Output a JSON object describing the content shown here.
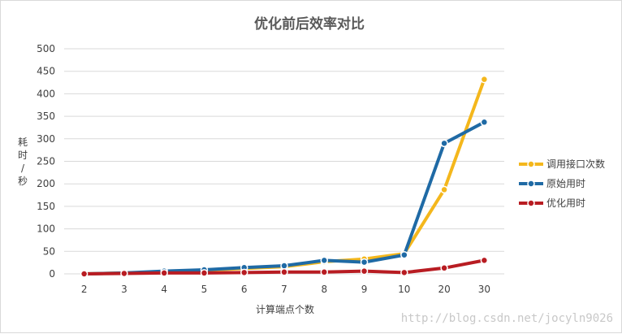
{
  "chart_data": {
    "type": "line",
    "title": "优化前后效率对比",
    "xlabel": "计算端点个数",
    "ylabel": "耗时/秒",
    "categories": [
      "2",
      "3",
      "4",
      "5",
      "6",
      "7",
      "8",
      "9",
      "10",
      "20",
      "30"
    ],
    "y_ticks": [
      "0",
      "50",
      "100",
      "150",
      "200",
      "250",
      "300",
      "350",
      "400",
      "450",
      "500"
    ],
    "ylim": [
      0,
      500
    ],
    "grid": true,
    "legend_position": "right",
    "series": [
      {
        "name": "调用接口次数",
        "color": "#f4b71c",
        "values": [
          0,
          2,
          4,
          8,
          12,
          16,
          27,
          33,
          45,
          187,
          432
        ]
      },
      {
        "name": "原始用时",
        "color": "#1f6aa5",
        "values": [
          0,
          2,
          6,
          9,
          14,
          18,
          30,
          26,
          42,
          290,
          337
        ]
      },
      {
        "name": "优化用时",
        "color": "#b81c22",
        "values": [
          0,
          1,
          2,
          2,
          3,
          4,
          4,
          6,
          3,
          13,
          30
        ]
      }
    ]
  },
  "watermark": "http://blog.csdn.net/jocyln9026"
}
